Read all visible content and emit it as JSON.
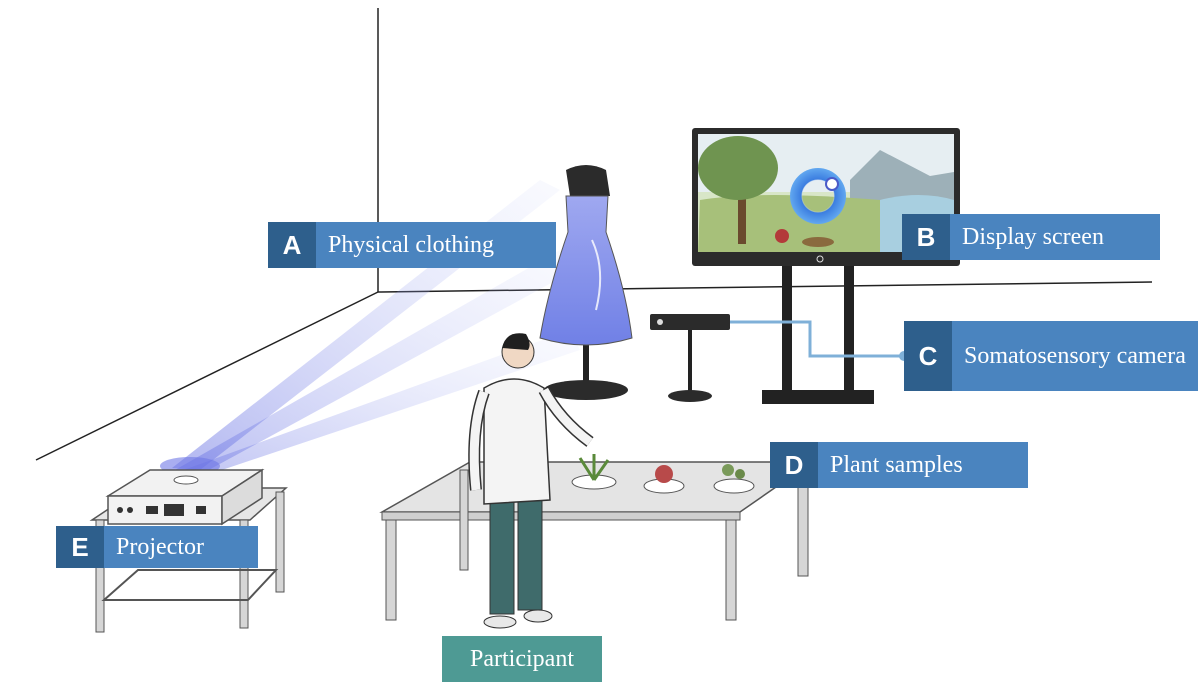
{
  "colors": {
    "letter_box": "#2e5f8c",
    "text_box": "#4a84bf",
    "participant_box": "#4e9a94",
    "beam": "#7a86e8",
    "connector": "#7fb0d8"
  },
  "labels": {
    "a": {
      "letter": "A",
      "text": "Physical clothing"
    },
    "b": {
      "letter": "B",
      "text": "Display screen"
    },
    "c": {
      "letter": "C",
      "text": "Somatosensory camera"
    },
    "d": {
      "letter": "D",
      "text": "Plant samples"
    },
    "e": {
      "letter": "E",
      "text": "Projector"
    },
    "participant": "Participant"
  }
}
